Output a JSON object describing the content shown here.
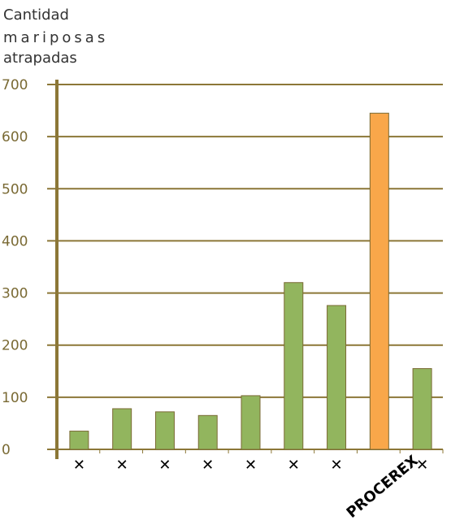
{
  "chart_data": {
    "type": "bar",
    "ylabel_lines": [
      "Cantidad",
      "mariposas",
      "atrapadas"
    ],
    "categories": [
      "✕",
      "✕",
      "✕",
      "✕",
      "✕",
      "✕",
      "✕",
      "PROCEREX",
      "✕"
    ],
    "values": [
      35,
      78,
      72,
      65,
      103,
      320,
      276,
      645,
      155
    ],
    "yticks": [
      "0",
      "100",
      "200",
      "300",
      "400",
      "500",
      "600",
      "700"
    ],
    "ylim": [
      0,
      700
    ],
    "grid": true,
    "colors": {
      "bar": "#92b55e",
      "highlight": "#f9a74a",
      "bar_stroke": "#7a6a34",
      "grid": "#8c7737",
      "axis": "#8c7737",
      "tick_text": "#7a6a34"
    },
    "highlight_index": 7
  }
}
